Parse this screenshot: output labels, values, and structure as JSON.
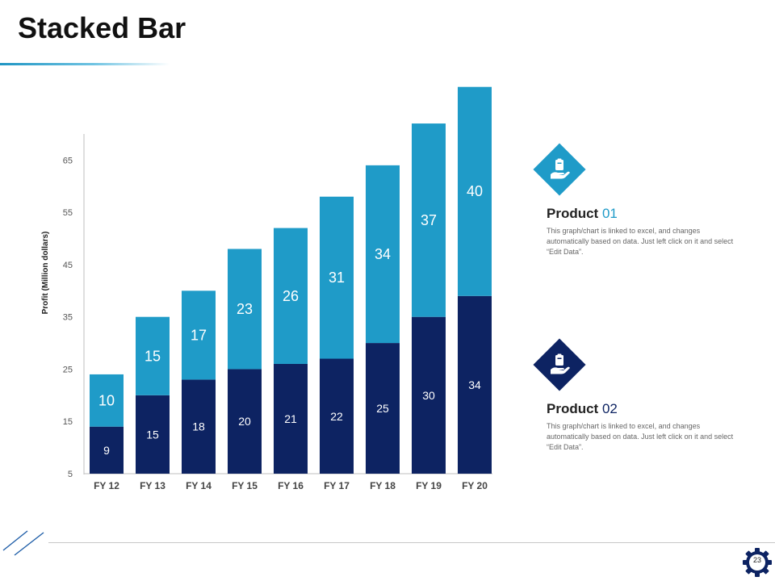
{
  "page": {
    "title": "Stacked Bar",
    "page_number": "23"
  },
  "colors": {
    "dark": "#0d2362",
    "light": "#1f9bc8",
    "accent": "#1f95c3",
    "text": "#222222"
  },
  "chart_data": {
    "type": "bar",
    "stacked": true,
    "title": "",
    "xlabel": "",
    "ylabel": "Profit  (Million dollars)",
    "categories": [
      "FY 12",
      "FY 13",
      "FY 14",
      "FY 15",
      "FY 16",
      "FY 17",
      "FY 18",
      "FY 19",
      "FY 20"
    ],
    "series": [
      {
        "name": "Product 02",
        "values": [
          9,
          15,
          18,
          20,
          21,
          22,
          25,
          30,
          34
        ],
        "color": "#0d2362"
      },
      {
        "name": "Product 01",
        "values": [
          10,
          15,
          17,
          23,
          26,
          31,
          34,
          37,
          40
        ],
        "color": "#1f9bc8"
      }
    ],
    "ylim": [
      5,
      70
    ],
    "yticks": [
      5,
      15,
      25,
      35,
      45,
      55,
      65
    ],
    "grid": false,
    "legend": "right"
  },
  "products": [
    {
      "name": "Product ",
      "number": "01",
      "icon": "hand-clipboard-icon",
      "description": "This graph/chart is linked to excel, and changes automatically based on data. Just left click on it and select “Edit Data”."
    },
    {
      "name": "Product ",
      "number": "02",
      "icon": "hand-clipboard-icon",
      "description": "This graph/chart is linked to excel, and changes automatically based on data. Just left click on it and select “Edit Data”."
    }
  ]
}
